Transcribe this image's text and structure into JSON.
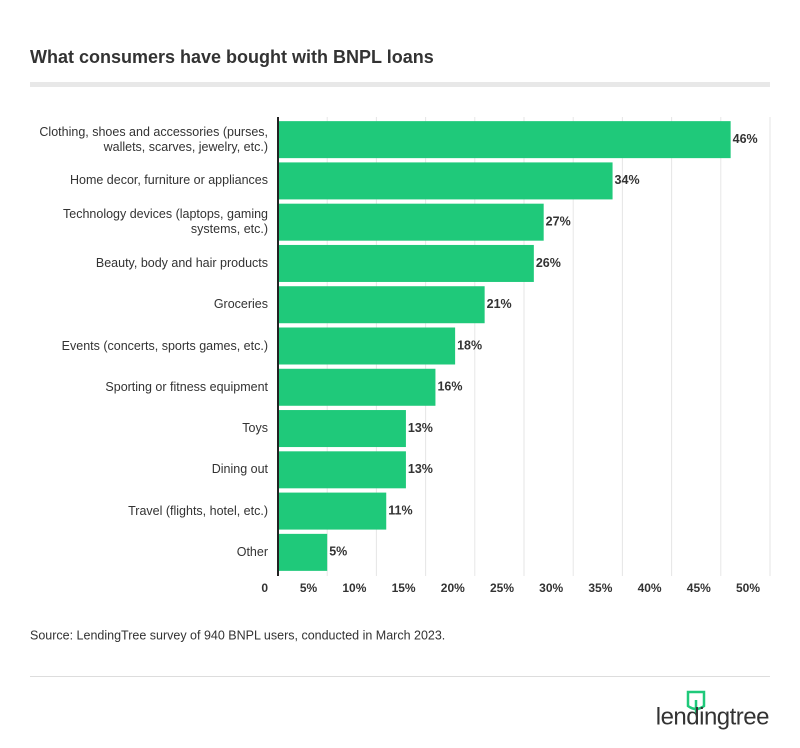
{
  "chart_data": {
    "type": "hbar",
    "title": "What consumers have bought with BNPL loans",
    "categories": [
      "Clothing, shoes and accessories (purses, wallets, scarves, jewelry, etc.)",
      "Home decor, furniture or appliances",
      "Technology devices (laptops, gaming systems, etc.)",
      "Beauty, body and hair products",
      "Groceries",
      "Events (concerts, sports games, etc.)",
      "Sporting or fitness equipment",
      "Toys",
      "Dining out",
      "Travel (flights, hotel, etc.)",
      "Other"
    ],
    "values": [
      46,
      34,
      27,
      26,
      21,
      18,
      16,
      13,
      13,
      11,
      5
    ],
    "value_labels": [
      "46%",
      "34%",
      "27%",
      "26%",
      "21%",
      "18%",
      "16%",
      "13%",
      "13%",
      "11%",
      "5%"
    ],
    "color": "#1fc97a",
    "xlim": [
      0,
      50
    ],
    "xticks": [
      0,
      {
        "value": 5,
        "label": "5%"
      },
      {
        "value": 10,
        "label": "10%"
      },
      {
        "value": 15,
        "label": "15%"
      },
      {
        "value": 20,
        "label": "20%"
      },
      {
        "value": 25,
        "label": "25%"
      },
      {
        "value": 30,
        "label": "30%"
      },
      {
        "value": 35,
        "label": "35%"
      },
      {
        "value": 40,
        "label": "40%"
      },
      {
        "value": 45,
        "label": "45%"
      },
      {
        "value": 50,
        "label": "50%"
      }
    ],
    "grid": true,
    "source": "Source: LendingTree survey of 940 BNPL users, conducted in March 2023.",
    "logo": "lendingtree"
  }
}
